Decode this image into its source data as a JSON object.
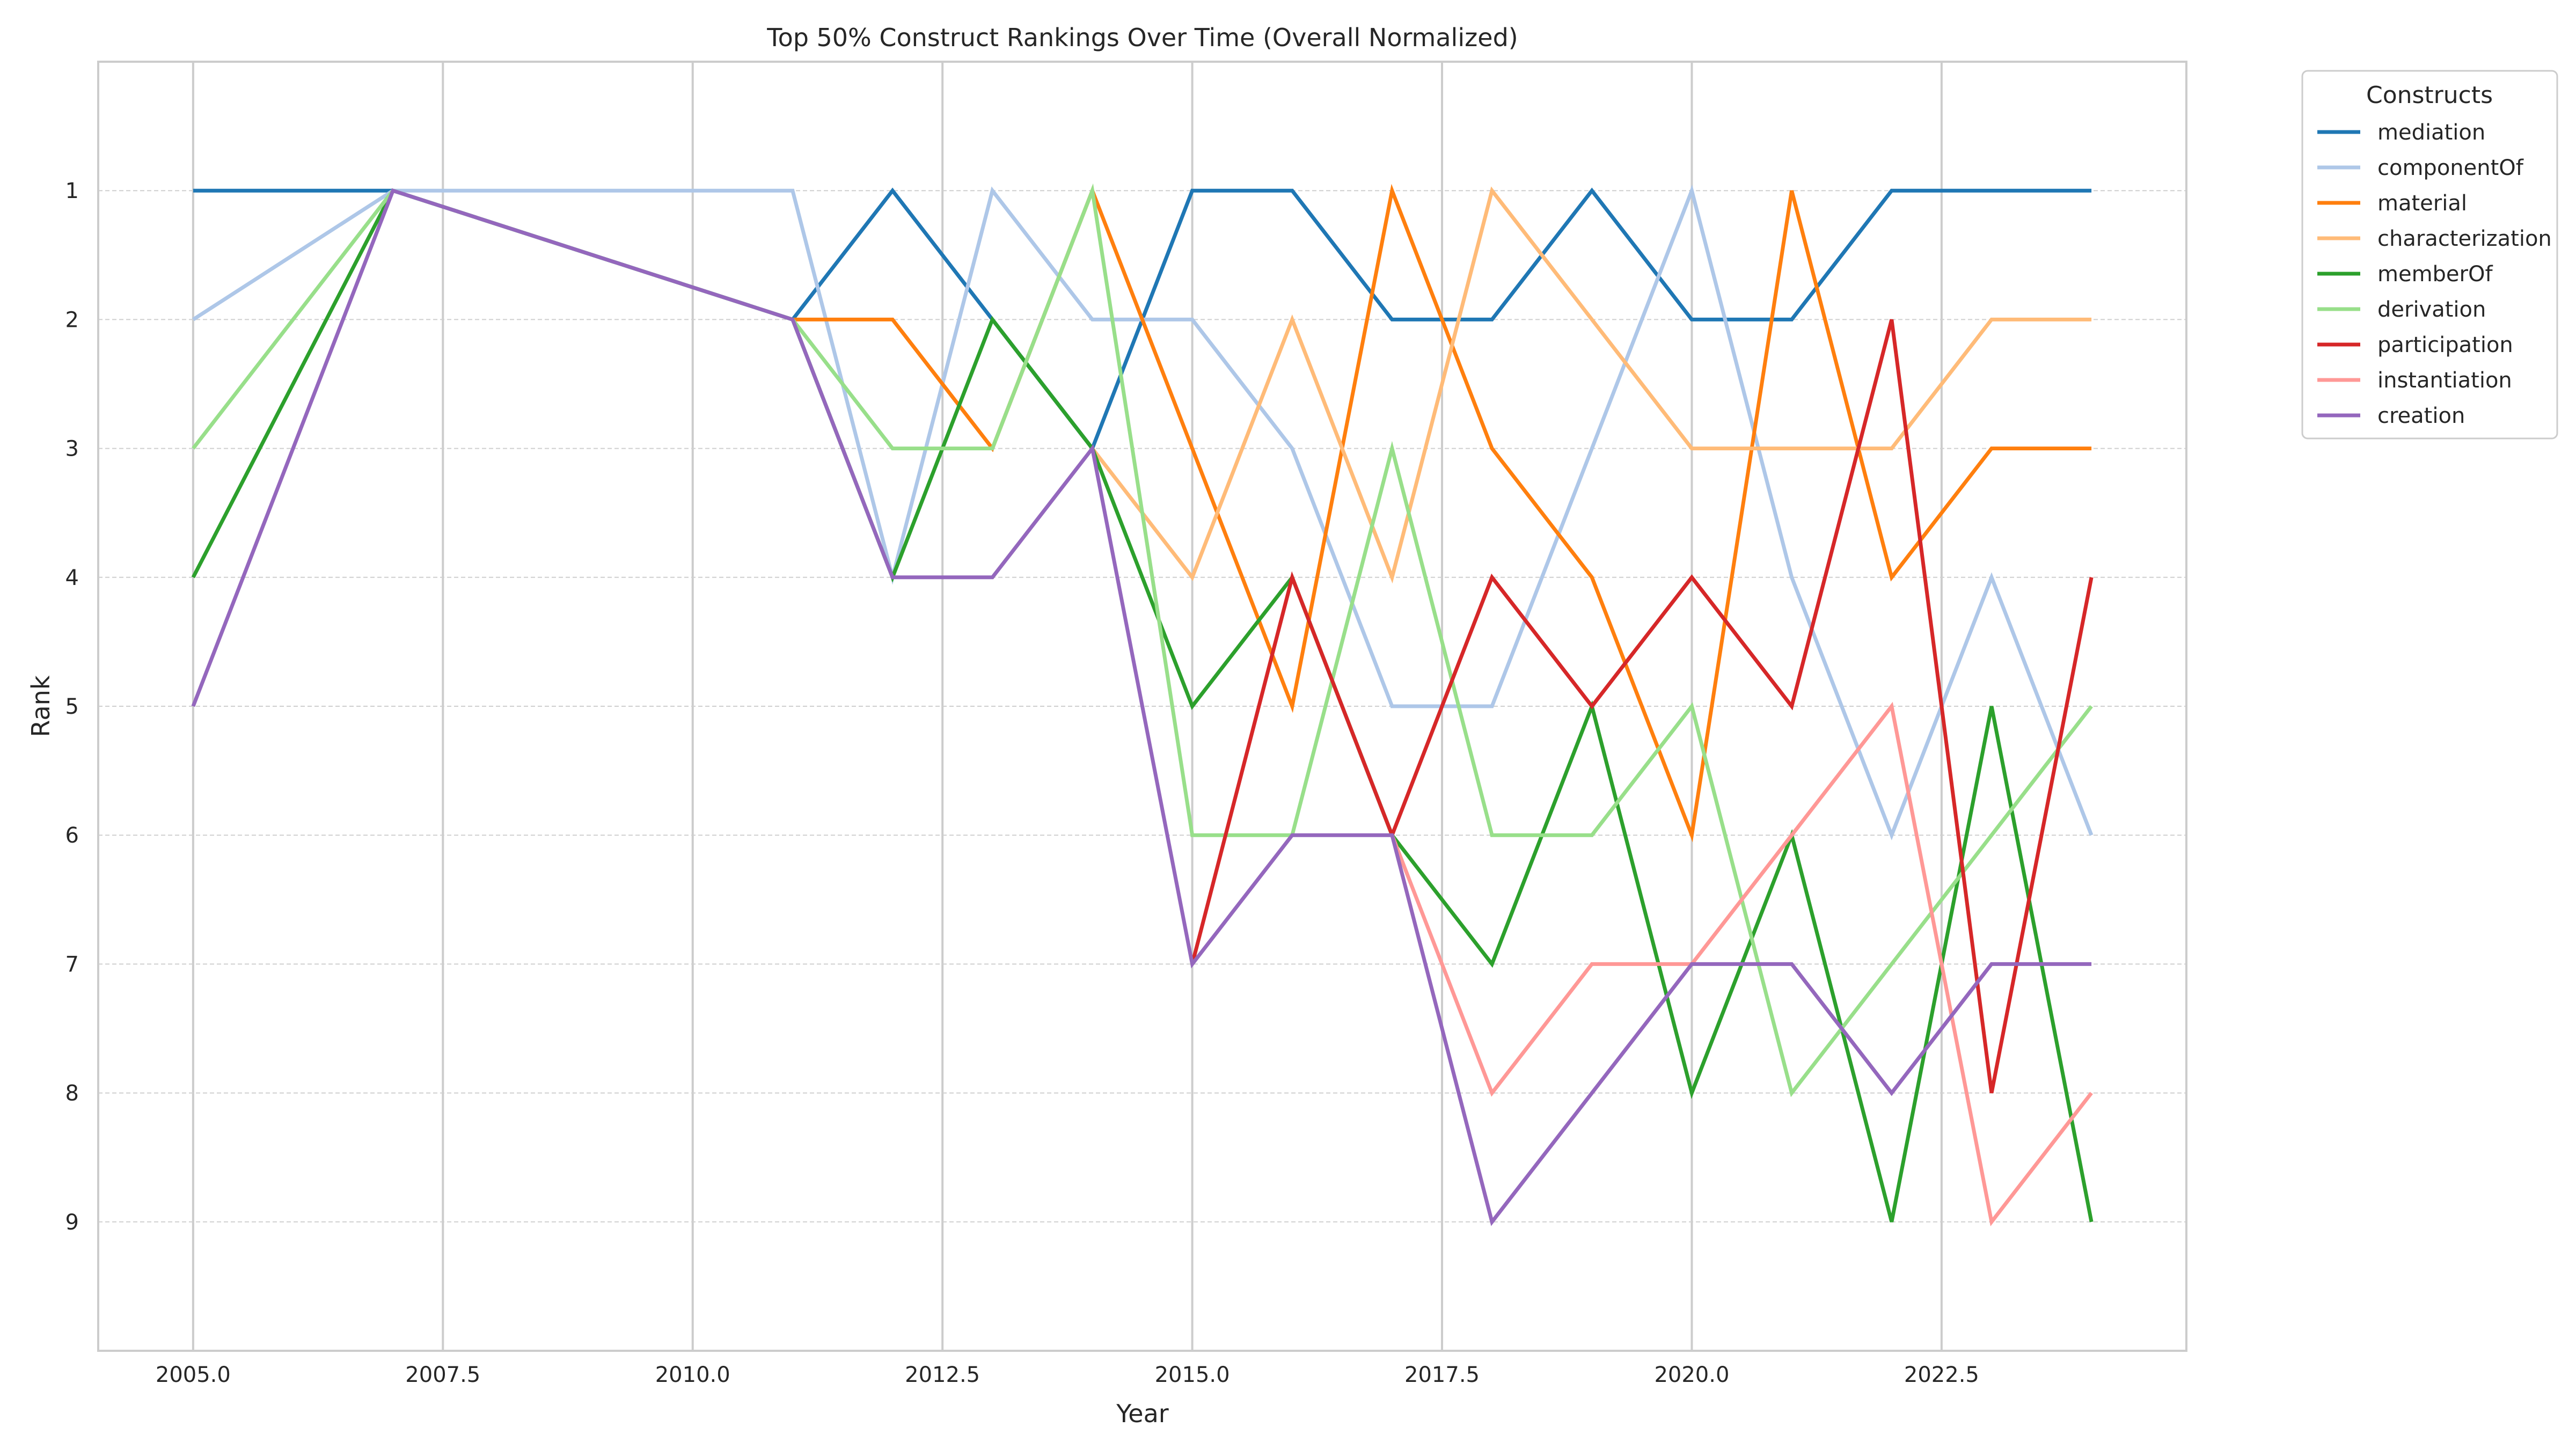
{
  "chart_data": {
    "type": "line",
    "title": "Top 50% Construct Rankings Over Time (Overall Normalized)",
    "xlabel": "Year",
    "ylabel": "Rank",
    "x": [
      2005,
      2007,
      2011,
      2012,
      2013,
      2014,
      2015,
      2016,
      2017,
      2018,
      2019,
      2020,
      2021,
      2022,
      2023,
      2024
    ],
    "xlim": [
      2004.05,
      2024.95
    ],
    "ylim": [
      10,
      0
    ],
    "y_inverted": true,
    "xticks": [
      2005.0,
      2007.5,
      2010.0,
      2012.5,
      2015.0,
      2017.5,
      2020.0,
      2022.5
    ],
    "xtick_labels": [
      "2005.0",
      "2007.5",
      "2010.0",
      "2012.5",
      "2015.0",
      "2017.5",
      "2020.0",
      "2022.5"
    ],
    "yticks": [
      1,
      2,
      3,
      4,
      5,
      6,
      7,
      8,
      9
    ],
    "ytick_labels": [
      "1",
      "2",
      "3",
      "4",
      "5",
      "6",
      "7",
      "8",
      "9"
    ],
    "grid": true,
    "legend": {
      "title": "Constructs",
      "placement": "outside right"
    },
    "series": [
      {
        "name": "mediation",
        "color": "#1f77b4",
        "values": [
          1,
          1,
          2,
          1,
          2,
          3,
          1,
          1,
          2,
          2,
          1,
          2,
          2,
          1,
          1,
          1
        ]
      },
      {
        "name": "componentOf",
        "color": "#aec7e8",
        "values": [
          2,
          1,
          1,
          4,
          1,
          2,
          2,
          3,
          5,
          5,
          3,
          1,
          4,
          6,
          4,
          6
        ]
      },
      {
        "name": "material",
        "color": "#ff7f0e",
        "values": [
          null,
          null,
          2,
          2,
          3,
          1,
          3,
          5,
          1,
          3,
          4,
          6,
          1,
          4,
          3,
          3
        ]
      },
      {
        "name": "characterization",
        "color": "#ffbb78",
        "values": [
          null,
          null,
          null,
          null,
          null,
          3,
          4,
          2,
          4,
          1,
          2,
          3,
          3,
          3,
          2,
          2
        ]
      },
      {
        "name": "memberOf",
        "color": "#2ca02c",
        "values": [
          4,
          1,
          2,
          4,
          2,
          3,
          5,
          4,
          6,
          7,
          5,
          8,
          6,
          9,
          5,
          9
        ]
      },
      {
        "name": "derivation",
        "color": "#98df8a",
        "values": [
          3,
          1,
          2,
          3,
          3,
          1,
          6,
          6,
          3,
          6,
          6,
          5,
          8,
          7,
          6,
          5
        ]
      },
      {
        "name": "participation",
        "color": "#d62728",
        "values": [
          null,
          null,
          null,
          null,
          null,
          null,
          7,
          4,
          6,
          4,
          5,
          4,
          5,
          2,
          8,
          4
        ]
      },
      {
        "name": "instantiation",
        "color": "#ff9896",
        "values": [
          null,
          null,
          null,
          null,
          null,
          null,
          null,
          null,
          6,
          8,
          7,
          7,
          6,
          5,
          9,
          8
        ]
      },
      {
        "name": "creation",
        "color": "#9467bd",
        "values": [
          5,
          1,
          2,
          4,
          4,
          3,
          7,
          6,
          6,
          9,
          8,
          7,
          7,
          8,
          7,
          7
        ]
      }
    ]
  }
}
